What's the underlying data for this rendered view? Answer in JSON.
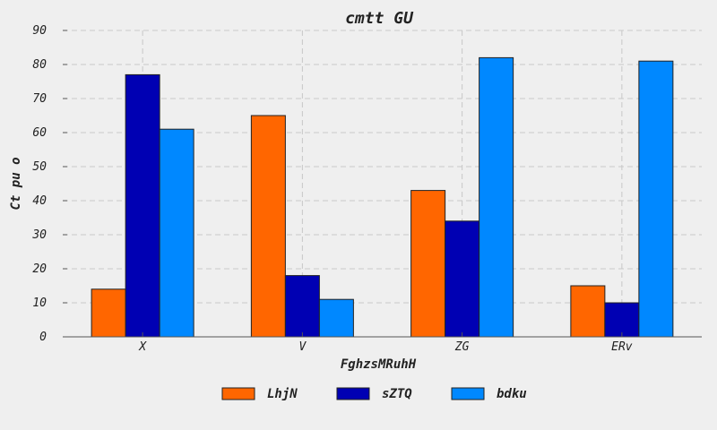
{
  "chart_data": {
    "type": "bar",
    "title": "cmtt GU",
    "xlabel": "FghzsMRuhH",
    "ylabel": "Ct pu  o",
    "categories": [
      "X",
      "V",
      "ZG",
      "ERv"
    ],
    "series": [
      {
        "name": "LhjN",
        "color": "#ff6600",
        "values": [
          14,
          65,
          43,
          15
        ]
      },
      {
        "name": "sZTQ",
        "color": "#0000b3",
        "values": [
          77,
          18,
          34,
          10
        ]
      },
      {
        "name": "bdku",
        "color": "#0088ff",
        "values": [
          61,
          11,
          82,
          81
        ]
      }
    ],
    "ylim": [
      0,
      90
    ],
    "yticks": [
      0,
      10,
      20,
      30,
      40,
      50,
      60,
      70,
      80,
      90
    ],
    "grid": true,
    "legend_position": "bottom-center"
  }
}
